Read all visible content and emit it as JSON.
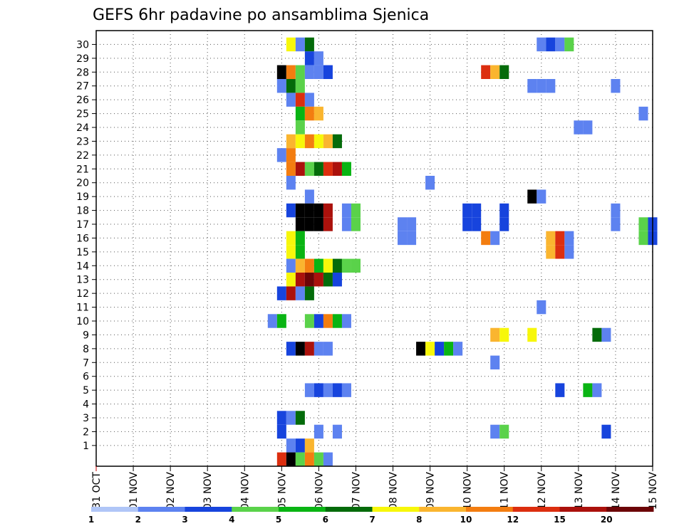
{
  "chart_data": {
    "type": "heatmap",
    "title": "GEFS 6hr padavine po ansamblima Sjenica",
    "y_ticks": [
      "1",
      "2",
      "3",
      "4",
      "5",
      "6",
      "7",
      "8",
      "9",
      "10",
      "11",
      "12",
      "13",
      "14",
      "15",
      "16",
      "17",
      "18",
      "19",
      "20",
      "21",
      "22",
      "23",
      "24",
      "25",
      "26",
      "27",
      "28",
      "29",
      "30"
    ],
    "x_ticks": [
      "31 OCT",
      "01 NOV",
      "02 NOV",
      "03 NOV",
      "04 NOV",
      "05 NOV",
      "06 NOV",
      "07 NOV",
      "08 NOV",
      "09 NOV",
      "10 NOV",
      "11 NOV",
      "12 NOV",
      "13 NOV",
      "14 NOV",
      "15 NOV"
    ],
    "x_start_day": 0,
    "x_end_day": 15,
    "y_rows": 30,
    "grid": true,
    "legend": {
      "position": "bottom",
      "labels": [
        "1",
        "2",
        "3",
        "4",
        "5",
        "6",
        "7",
        "8",
        "10",
        "12",
        "15",
        "20"
      ],
      "colors": [
        "#b0c6f7",
        "#5d82f0",
        "#1744dd",
        "#5ad24a",
        "#09b413",
        "#046b0a",
        "#f7f70a",
        "#fab52f",
        "#f37d10",
        "#dc2e0f",
        "#ab110c",
        "#6c0407"
      ]
    },
    "unit": "6hr precipitation (mm)",
    "cells": [
      [
        30,
        5.25,
        6
      ],
      [
        30,
        5.5,
        1
      ],
      [
        30,
        5.75,
        5
      ],
      [
        30,
        12.0,
        1
      ],
      [
        30,
        12.25,
        2
      ],
      [
        30,
        12.5,
        1
      ],
      [
        30,
        12.75,
        3
      ],
      [
        29,
        5.75,
        2
      ],
      [
        29,
        6.0,
        1
      ],
      [
        28,
        5.0,
        12
      ],
      [
        28,
        5.25,
        8
      ],
      [
        28,
        5.5,
        3
      ],
      [
        28,
        5.75,
        1
      ],
      [
        28,
        6.0,
        1
      ],
      [
        28,
        6.25,
        2
      ],
      [
        28,
        10.5,
        9
      ],
      [
        28,
        10.75,
        7
      ],
      [
        28,
        11.0,
        5
      ],
      [
        27,
        5.0,
        1
      ],
      [
        27,
        5.25,
        5
      ],
      [
        27,
        5.5,
        3
      ],
      [
        27,
        11.75,
        1
      ],
      [
        27,
        12.0,
        1
      ],
      [
        27,
        12.25,
        1
      ],
      [
        27,
        14.0,
        1
      ],
      [
        26,
        5.25,
        1
      ],
      [
        26,
        5.5,
        9
      ],
      [
        26,
        5.75,
        1
      ],
      [
        25,
        5.5,
        4
      ],
      [
        25,
        5.75,
        8
      ],
      [
        25,
        6.0,
        7
      ],
      [
        25,
        14.75,
        1
      ],
      [
        24,
        5.5,
        3
      ],
      [
        24,
        13.0,
        1
      ],
      [
        24,
        13.25,
        1
      ],
      [
        23,
        5.25,
        7
      ],
      [
        23,
        5.5,
        6
      ],
      [
        23,
        5.75,
        8
      ],
      [
        23,
        6.0,
        6
      ],
      [
        23,
        6.25,
        7
      ],
      [
        23,
        6.5,
        5
      ],
      [
        22,
        5.0,
        1
      ],
      [
        22,
        5.25,
        8
      ],
      [
        21,
        5.25,
        8
      ],
      [
        21,
        5.5,
        10
      ],
      [
        21,
        5.75,
        3
      ],
      [
        21,
        6.0,
        5
      ],
      [
        21,
        6.25,
        9
      ],
      [
        21,
        6.5,
        10
      ],
      [
        21,
        6.75,
        4
      ],
      [
        20,
        5.25,
        1
      ],
      [
        20,
        9.0,
        1
      ],
      [
        19,
        5.75,
        1
      ],
      [
        19,
        11.75,
        12
      ],
      [
        19,
        12.0,
        1
      ],
      [
        18,
        5.25,
        2
      ],
      [
        18,
        5.5,
        12
      ],
      [
        18,
        5.75,
        12
      ],
      [
        18,
        6.0,
        12
      ],
      [
        18,
        6.25,
        10
      ],
      [
        18,
        6.75,
        1
      ],
      [
        18,
        7.0,
        3
      ],
      [
        18,
        10.0,
        2
      ],
      [
        18,
        10.25,
        2
      ],
      [
        18,
        11.0,
        2
      ],
      [
        18,
        14.0,
        1
      ],
      [
        17,
        5.5,
        12
      ],
      [
        17,
        5.75,
        12
      ],
      [
        17,
        6.0,
        12
      ],
      [
        17,
        6.25,
        10
      ],
      [
        17,
        6.75,
        1
      ],
      [
        17,
        7.0,
        3
      ],
      [
        17,
        8.25,
        1
      ],
      [
        17,
        8.5,
        1
      ],
      [
        17,
        10.0,
        2
      ],
      [
        17,
        10.25,
        2
      ],
      [
        17,
        11.0,
        2
      ],
      [
        17,
        14.0,
        1
      ],
      [
        17,
        14.75,
        3
      ],
      [
        17,
        15.0,
        2
      ],
      [
        16,
        5.25,
        6
      ],
      [
        16,
        5.5,
        4
      ],
      [
        16,
        8.25,
        1
      ],
      [
        16,
        8.5,
        1
      ],
      [
        16,
        10.5,
        8
      ],
      [
        16,
        10.75,
        1
      ],
      [
        16,
        12.25,
        7
      ],
      [
        16,
        12.5,
        9
      ],
      [
        16,
        12.75,
        1
      ],
      [
        16,
        14.75,
        3
      ],
      [
        16,
        15.0,
        2
      ],
      [
        15,
        5.25,
        6
      ],
      [
        15,
        5.5,
        4
      ],
      [
        15,
        12.25,
        7
      ],
      [
        15,
        12.5,
        9
      ],
      [
        15,
        12.75,
        1
      ],
      [
        14,
        5.25,
        1
      ],
      [
        14,
        5.5,
        7
      ],
      [
        14,
        5.75,
        8
      ],
      [
        14,
        6.0,
        4
      ],
      [
        14,
        6.25,
        6
      ],
      [
        14,
        6.5,
        5
      ],
      [
        14,
        6.75,
        3
      ],
      [
        14,
        7.0,
        3
      ],
      [
        13,
        5.25,
        6
      ],
      [
        13,
        5.5,
        10
      ],
      [
        13,
        5.75,
        11
      ],
      [
        13,
        6.0,
        10
      ],
      [
        13,
        6.25,
        5
      ],
      [
        13,
        6.5,
        2
      ],
      [
        12,
        5.0,
        2
      ],
      [
        12,
        5.25,
        10
      ],
      [
        12,
        5.5,
        1
      ],
      [
        12,
        5.75,
        5
      ],
      [
        11,
        12.0,
        1
      ],
      [
        10,
        4.75,
        1
      ],
      [
        10,
        5.0,
        4
      ],
      [
        10,
        5.75,
        3
      ],
      [
        10,
        6.0,
        2
      ],
      [
        10,
        6.25,
        8
      ],
      [
        10,
        6.5,
        4
      ],
      [
        10,
        6.75,
        1
      ],
      [
        9,
        10.75,
        7
      ],
      [
        9,
        11.0,
        6
      ],
      [
        9,
        11.75,
        6
      ],
      [
        9,
        13.5,
        5
      ],
      [
        9,
        13.75,
        1
      ],
      [
        8,
        5.25,
        2
      ],
      [
        8,
        5.5,
        12
      ],
      [
        8,
        5.75,
        10
      ],
      [
        8,
        6.0,
        1
      ],
      [
        8,
        6.25,
        1
      ],
      [
        8,
        8.75,
        12
      ],
      [
        8,
        9.0,
        6
      ],
      [
        8,
        9.25,
        2
      ],
      [
        8,
        9.5,
        4
      ],
      [
        8,
        9.75,
        1
      ],
      [
        7,
        10.75,
        1
      ],
      [
        5,
        5.75,
        1
      ],
      [
        5,
        6.0,
        2
      ],
      [
        5,
        6.25,
        1
      ],
      [
        5,
        6.5,
        2
      ],
      [
        5,
        6.75,
        1
      ],
      [
        5,
        12.5,
        2
      ],
      [
        5,
        13.25,
        4
      ],
      [
        5,
        13.5,
        1
      ],
      [
        3,
        5.0,
        2
      ],
      [
        3,
        5.25,
        1
      ],
      [
        3,
        5.5,
        5
      ],
      [
        2,
        5.0,
        2
      ],
      [
        2,
        6.0,
        1
      ],
      [
        2,
        6.5,
        1
      ],
      [
        2,
        10.75,
        1
      ],
      [
        2,
        11.0,
        3
      ],
      [
        2,
        13.75,
        2
      ],
      [
        1,
        5.25,
        1
      ],
      [
        1,
        5.5,
        2
      ],
      [
        1,
        5.75,
        7
      ],
      [
        0,
        5.0,
        9
      ],
      [
        0,
        5.25,
        12
      ],
      [
        0,
        5.5,
        3
      ],
      [
        0,
        5.75,
        8
      ],
      [
        0,
        6.0,
        3
      ],
      [
        0,
        6.25,
        1
      ]
    ]
  }
}
